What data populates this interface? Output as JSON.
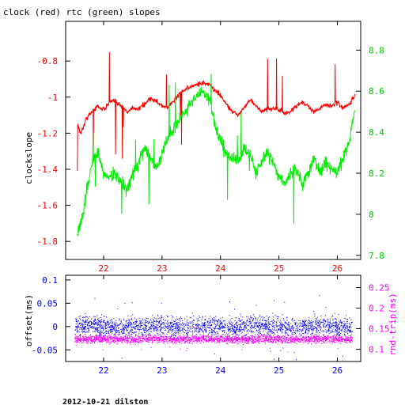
{
  "title": "clock (red) rtc (green) slopes",
  "footer": "2012-10-21 dilston",
  "colors": {
    "red": "#ff0000",
    "green": "#00ee00",
    "blue": "#0000ff",
    "magenta": "#ff00ff",
    "axis": "#000000"
  },
  "chart_data": [
    {
      "type": "line",
      "title": "clock (red) rtc (green) slopes",
      "xlabel": "",
      "ylabel": "clockslope",
      "xlim": [
        21.35,
        26.4
      ],
      "ylim": [
        -1.9,
        -0.58
      ],
      "y2lim": [
        7.78,
        8.94
      ],
      "x_ticks": [
        "22",
        "23",
        "24",
        "25",
        "26"
      ],
      "y_ticks": [
        "-0.8",
        "-1",
        "-1.2",
        "-1.4",
        "-1.6",
        "-1.8"
      ],
      "y2_ticks": [
        "8.8",
        "8.6",
        "8.4",
        "8.2",
        "8",
        "7.8"
      ],
      "grid": false,
      "series": [
        {
          "name": "clock",
          "color": "#ff0000",
          "axis": "left",
          "x": [
            21.55,
            21.6,
            21.65,
            21.7,
            21.8,
            21.9,
            22.0,
            22.1,
            22.2,
            22.3,
            22.4,
            22.5,
            22.6,
            22.7,
            22.8,
            22.9,
            23.0,
            23.1,
            23.2,
            23.3,
            23.4,
            23.5,
            23.6,
            23.7,
            23.8,
            23.9,
            24.0,
            24.1,
            24.2,
            24.3,
            24.4,
            24.5,
            24.6,
            24.7,
            24.8,
            24.9,
            25.0,
            25.1,
            25.2,
            25.3,
            25.4,
            25.5,
            25.6,
            25.7,
            25.8,
            25.9,
            26.0,
            26.1,
            26.2,
            26.3
          ],
          "values": [
            -1.15,
            -1.2,
            -1.17,
            -1.12,
            -1.08,
            -1.05,
            -1.07,
            -1.03,
            -1.02,
            -1.05,
            -1.08,
            -1.06,
            -1.07,
            -1.04,
            -1.01,
            -1.02,
            -1.05,
            -1.06,
            -1.02,
            -0.98,
            -0.96,
            -0.94,
            -0.93,
            -0.92,
            -0.93,
            -0.96,
            -0.99,
            -1.04,
            -1.08,
            -1.1,
            -1.06,
            -1.02,
            -1.04,
            -1.08,
            -1.07,
            -1.06,
            -1.07,
            -1.09,
            -1.08,
            -1.05,
            -1.03,
            -1.05,
            -1.08,
            -1.06,
            -1.04,
            -1.05,
            -1.03,
            -1.06,
            -1.04,
            -0.99
          ]
        },
        {
          "name": "rtc",
          "color": "#00ee00",
          "axis": "right",
          "x": [
            21.55,
            21.6,
            21.65,
            21.7,
            21.8,
            21.9,
            22.0,
            22.1,
            22.2,
            22.3,
            22.4,
            22.5,
            22.6,
            22.7,
            22.8,
            22.9,
            23.0,
            23.1,
            23.2,
            23.3,
            23.4,
            23.5,
            23.6,
            23.7,
            23.8,
            23.9,
            24.0,
            24.1,
            24.2,
            24.3,
            24.4,
            24.5,
            24.6,
            24.7,
            24.8,
            24.9,
            25.0,
            25.1,
            25.2,
            25.3,
            25.4,
            25.5,
            25.6,
            25.7,
            25.8,
            25.9,
            26.0,
            26.1,
            26.2,
            26.3
          ],
          "values": [
            7.9,
            7.95,
            8.0,
            8.1,
            8.25,
            8.3,
            8.2,
            8.18,
            8.2,
            8.15,
            8.12,
            8.2,
            8.25,
            8.32,
            8.28,
            8.22,
            8.3,
            8.38,
            8.42,
            8.46,
            8.5,
            8.55,
            8.58,
            8.6,
            8.56,
            8.45,
            8.35,
            8.3,
            8.28,
            8.25,
            8.32,
            8.3,
            8.2,
            8.25,
            8.3,
            8.25,
            8.18,
            8.15,
            8.2,
            8.22,
            8.15,
            8.2,
            8.28,
            8.2,
            8.25,
            8.22,
            8.2,
            8.28,
            8.35,
            8.5
          ]
        }
      ]
    },
    {
      "type": "scatter",
      "xlabel": "",
      "ylabel": "offset(ms)",
      "y2label": "rnd-trip(ms)",
      "xlim": [
        21.35,
        26.4
      ],
      "ylim": [
        -0.075,
        0.11
      ],
      "y2lim": [
        0.07,
        0.28
      ],
      "x_ticks": [
        "22",
        "23",
        "24",
        "25",
        "26"
      ],
      "y_ticks": [
        "0.1",
        "0.05",
        "0",
        "-0.05"
      ],
      "y2_ticks": [
        "0.25",
        "0.2",
        "0.15",
        "0.1"
      ],
      "grid": false,
      "series": [
        {
          "name": "offset",
          "color": "#0000ff",
          "axis": "left",
          "x": [
            21.5,
            21.75,
            22.0,
            22.25,
            22.5,
            22.75,
            23.0,
            23.25,
            23.5,
            23.75,
            24.0,
            24.25,
            24.5,
            24.75,
            25.0,
            25.25,
            25.5,
            25.75,
            26.0,
            26.25
          ],
          "values": [
            0.0,
            0.005,
            0.0,
            -0.005,
            0.002,
            0.0,
            0.004,
            -0.002,
            0.0,
            0.003,
            0.0,
            -0.004,
            0.002,
            0.0,
            0.001,
            -0.003,
            0.0,
            0.002,
            -0.001,
            0.0
          ],
          "spread": 0.022
        },
        {
          "name": "rnd-trip",
          "color": "#ff00ff",
          "axis": "right",
          "x": [
            21.5,
            21.75,
            22.0,
            22.25,
            22.5,
            22.75,
            23.0,
            23.25,
            23.5,
            23.75,
            24.0,
            24.25,
            24.5,
            24.75,
            25.0,
            25.25,
            25.5,
            25.75,
            26.0,
            26.25
          ],
          "values": [
            0.125,
            0.124,
            0.126,
            0.125,
            0.124,
            0.126,
            0.125,
            0.124,
            0.125,
            0.126,
            0.125,
            0.124,
            0.125,
            0.126,
            0.125,
            0.124,
            0.125,
            0.126,
            0.125,
            0.124
          ],
          "spread": 0.01
        }
      ]
    }
  ]
}
